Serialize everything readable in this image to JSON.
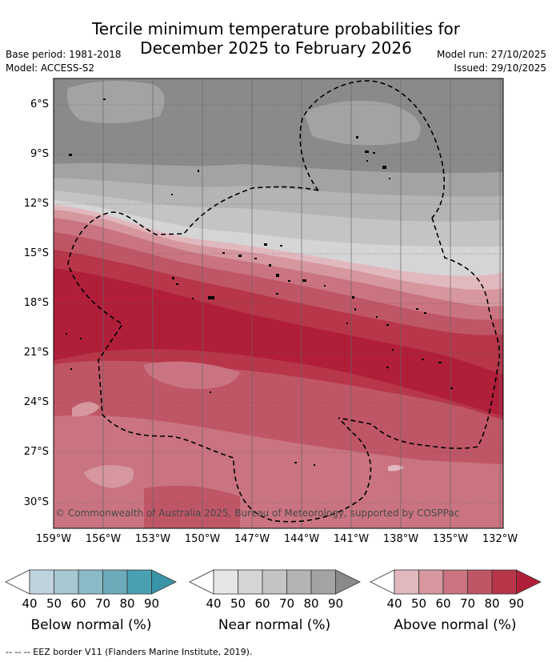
{
  "title_line1": "Tercile minimum temperature probabilities for",
  "title_line2": "December 2025 to February 2026",
  "base_period": "Base period: 1981-2018",
  "model": "Model: ACCESS-S2",
  "model_run": "Model run: 27/10/2025",
  "issued": "Issued: 29/10/2025",
  "lat_labels": [
    "6°S",
    "9°S",
    "12°S",
    "15°S",
    "18°S",
    "21°S",
    "24°S",
    "27°S",
    "30°S"
  ],
  "lon_labels": [
    "159°W",
    "156°W",
    "153°W",
    "150°W",
    "147°W",
    "144°W",
    "141°W",
    "138°W",
    "135°W",
    "132°W"
  ],
  "copyright": "© Commonwealth of Australia 2025, Bureau of Meteorology, supported by COSPPac",
  "colorbars": [
    {
      "label": "Below normal (%)",
      "ticks": [
        "40",
        "50",
        "60",
        "70",
        "80",
        "90"
      ],
      "colors": [
        "#ffffff",
        "#bfd3dc",
        "#a5c8d1",
        "#8abac7",
        "#6dabbb",
        "#4aa0b3",
        "#3a94a8"
      ]
    },
    {
      "label": "Near normal (%)",
      "ticks": [
        "40",
        "50",
        "60",
        "70",
        "80",
        "90"
      ],
      "colors": [
        "#ffffff",
        "#e6e6e6",
        "#d5d5d5",
        "#c4c4c4",
        "#b4b4b4",
        "#a3a3a3",
        "#8a8a8a"
      ]
    },
    {
      "label": "Above normal (%)",
      "ticks": [
        "40",
        "50",
        "60",
        "70",
        "80",
        "90"
      ],
      "colors": [
        "#ffffff",
        "#e2b8bf",
        "#d6979f",
        "#c97480",
        "#bf5666",
        "#b73649",
        "#b01e3a"
      ]
    }
  ],
  "footnote": "-- -- -- EEZ border V11 (Flanders Marine Institute, 2019)."
}
